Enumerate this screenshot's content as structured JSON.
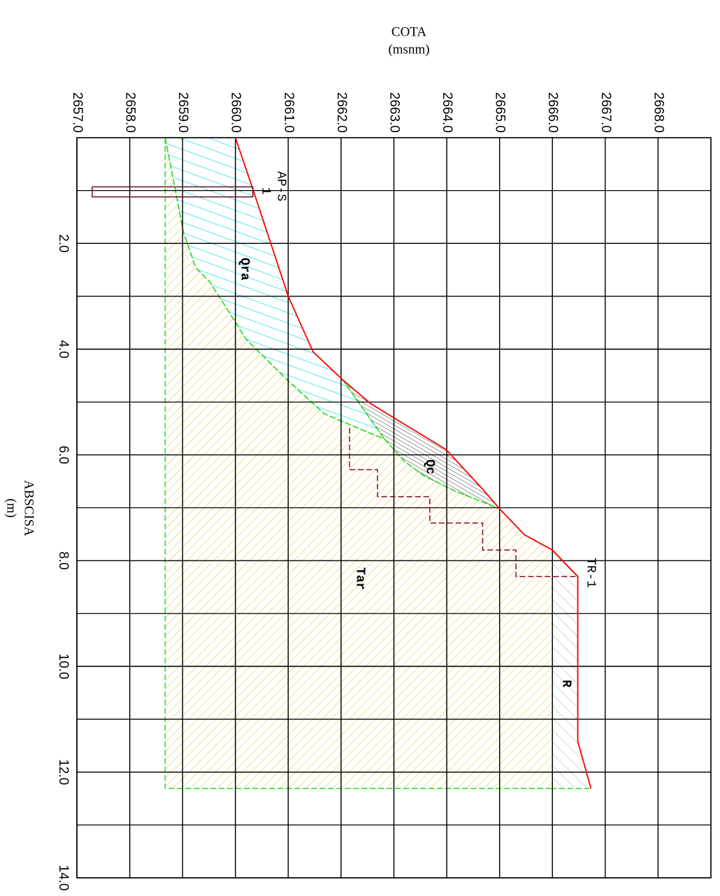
{
  "chart_data": {
    "type": "profile",
    "y_axis_label": "COTA",
    "y_axis_unit": "(msnm)",
    "x_axis_label": "ABSCISA",
    "x_axis_unit": "(m)",
    "ylim": [
      2657,
      2669
    ],
    "yticks": [
      {
        "value": 2657,
        "label": "2657.0"
      },
      {
        "value": 2658,
        "label": "2658.0"
      },
      {
        "value": 2659,
        "label": "2659.0"
      },
      {
        "value": 2660,
        "label": "2660.0"
      },
      {
        "value": 2661,
        "label": "2661.0"
      },
      {
        "value": 2662,
        "label": "2662.0"
      },
      {
        "value": 2663,
        "label": "2663.0"
      },
      {
        "value": 2664,
        "label": "2664.0"
      },
      {
        "value": 2665,
        "label": "2665.0"
      },
      {
        "value": 2666,
        "label": "2666.0"
      },
      {
        "value": 2667,
        "label": "2667.0"
      },
      {
        "value": 2668,
        "label": "2668.0"
      }
    ],
    "xlim": [
      0,
      14
    ],
    "xticks": [
      {
        "value": 2,
        "label": "2.0"
      },
      {
        "value": 4,
        "label": "4.0"
      },
      {
        "value": 6,
        "label": "6.0"
      },
      {
        "value": 8,
        "label": "8.0"
      },
      {
        "value": 10,
        "label": "10.0"
      },
      {
        "value": 12,
        "label": "12.0"
      },
      {
        "value": 14,
        "label": "14.0"
      }
    ],
    "grid": true,
    "layers": [
      {
        "name": "Tar",
        "color": "#f5c04a",
        "x": [
          0,
          1.8,
          2.46,
          2.72,
          3.52,
          3.81,
          4.6,
          5.22,
          5.57,
          5.7,
          6.12,
          6.39,
          6.68,
          7.02,
          7.51,
          7.8,
          12.31,
          12.31
        ],
        "y": [
          2658.67,
          2659.02,
          2659.25,
          2659.51,
          2660.02,
          2660.2,
          2661.0,
          2661.68,
          2662.5,
          2662.82,
          2663.2,
          2663.56,
          2664.15,
          2665.0,
          2665.47,
          2666.0,
          2666.0,
          2658.67
        ]
      },
      {
        "name": "Qra",
        "color": "#00d8e8",
        "x": [
          0,
          0.97,
          3.0,
          4.05,
          4.58,
          5.7,
          5.57,
          5.22,
          4.6,
          3.81,
          3.52,
          2.72,
          2.46,
          1.8,
          0
        ],
        "y": [
          2660.0,
          2660.33,
          2661.0,
          2661.47,
          2662.03,
          2662.82,
          2662.5,
          2661.68,
          2661.0,
          2660.2,
          2660.02,
          2659.51,
          2659.25,
          2659.02,
          2658.67
        ]
      },
      {
        "name": "Qc",
        "color": "#555555",
        "x": [
          4.58,
          5.03,
          5.3,
          5.9,
          6.65,
          7.02,
          6.68,
          6.39,
          6.12,
          5.7
        ],
        "y": [
          2662.03,
          2662.56,
          2663.0,
          2663.99,
          2664.68,
          2665.0,
          2664.15,
          2663.56,
          2663.2,
          2662.82
        ]
      },
      {
        "name": "R",
        "color": "#b8b8b8",
        "x": [
          7.8,
          8.3,
          11.42,
          12.31,
          12.31
        ],
        "y": [
          2666.0,
          2666.48,
          2666.48,
          2666.73,
          2666.0
        ]
      }
    ],
    "surface": {
      "color": "#ff0000",
      "x": [
        0,
        0.97,
        3.0,
        4.05,
        4.58,
        5.03,
        5.3,
        5.9,
        6.65,
        7.02,
        7.51,
        7.8,
        8.3,
        11.42,
        12.31
      ],
      "y": [
        2660.0,
        2660.33,
        2661.0,
        2661.47,
        2662.03,
        2662.56,
        2663.0,
        2663.99,
        2664.68,
        2665.0,
        2665.47,
        2666.0,
        2666.48,
        2666.48,
        2666.73
      ]
    },
    "boreholes": [
      {
        "name": "AP-S",
        "number": "1",
        "color": "#6b1020",
        "x": [
          0.93,
          1.12
        ],
        "y": [
          2657.29,
          2660.33
        ]
      },
      {
        "name": "TR-1",
        "color": "#7a1020",
        "x": [
          5.49,
          6.28,
          6.28,
          6.79,
          6.79,
          7.29,
          7.29,
          7.8,
          7.8,
          8.3,
          8.3
        ],
        "y": [
          2662.16,
          2662.16,
          2662.69,
          2662.69,
          2663.68,
          2663.68,
          2664.68,
          2664.68,
          2665.31,
          2665.31,
          2666.48
        ]
      }
    ]
  }
}
